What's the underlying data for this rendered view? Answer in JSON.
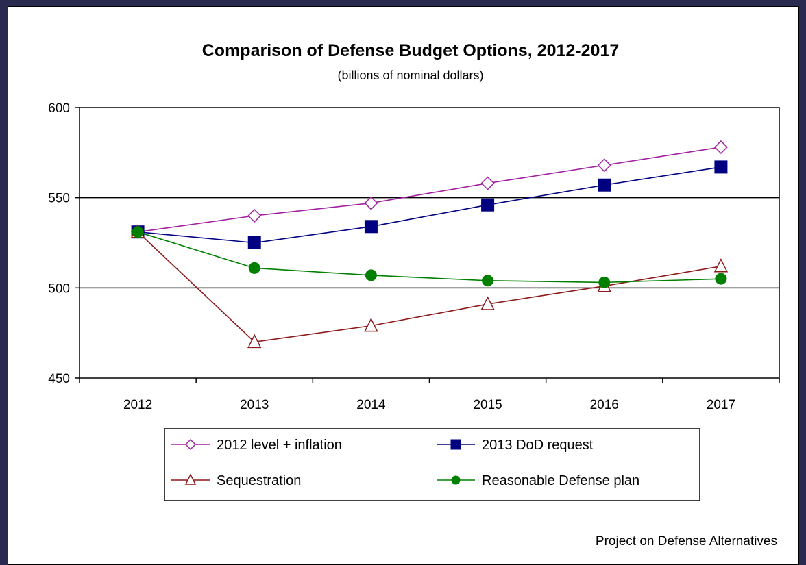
{
  "chart_data": {
    "type": "line",
    "title": "Comparison of Defense Budget Options, 2012-2017",
    "subtitle": "(billions of nominal dollars)",
    "xlabel": "",
    "ylabel": "",
    "categories": [
      "2012",
      "2013",
      "2014",
      "2015",
      "2016",
      "2017"
    ],
    "ylim": [
      450,
      600
    ],
    "yticks": [
      "450",
      "500",
      "550",
      "600"
    ],
    "grid": "horizontal lines at 500 and 550",
    "legend_position": "bottom",
    "series": [
      {
        "name": "2012 level + inflation",
        "values": [
          531,
          540,
          547,
          558,
          568,
          578
        ],
        "color": "#a020a0",
        "marker": "diamond-open"
      },
      {
        "name": "2013 DoD request",
        "values": [
          531,
          525,
          534,
          546,
          557,
          567
        ],
        "color": "#000080",
        "marker": "square-filled"
      },
      {
        "name": "Sequestration",
        "values": [
          531,
          470,
          479,
          491,
          501,
          512
        ],
        "color": "#8b1a1a",
        "marker": "triangle-open"
      },
      {
        "name": "Reasonable Defense plan",
        "values": [
          531,
          511,
          507,
          504,
          503,
          505
        ],
        "color": "#008000",
        "marker": "circle-filled"
      }
    ],
    "source_note": "Project on Defense Alternatives"
  }
}
